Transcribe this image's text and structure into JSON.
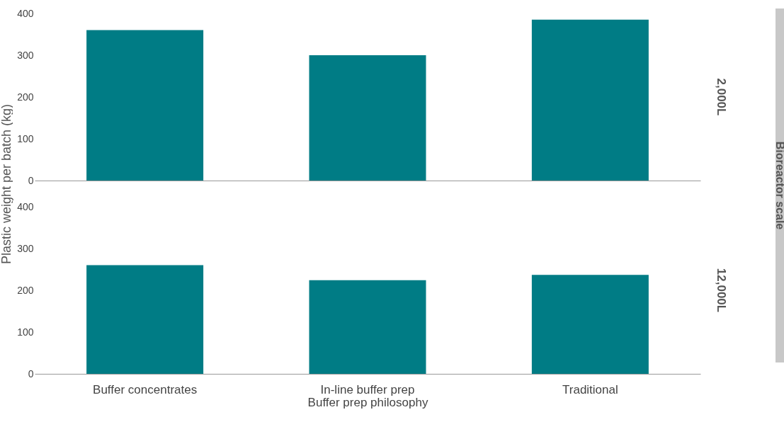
{
  "chart_data": [
    {
      "type": "bar",
      "y2label": "2,000L",
      "ylabel": "Plastic weight per batch (kg)",
      "categories": [
        null,
        null,
        null
      ],
      "values": [
        360,
        300,
        385
      ],
      "color": "#007c85",
      "ylim": [
        0,
        400
      ],
      "yticks": [
        0,
        100,
        200,
        300,
        400
      ],
      "grid": false,
      "tick_labels": "y",
      "annotations": [
        "Bioreactor scale"
      ]
    },
    {
      "type": "bar",
      "y2label": "12,000L",
      "xlabel": "Buffer prep philosophy",
      "categories": [
        "Buffer concentrates",
        "In-line buffer prep",
        "Traditional"
      ],
      "values": [
        260,
        224,
        237
      ],
      "color": "#007c85",
      "ylim": [
        0,
        400
      ],
      "yticks": [
        0,
        100,
        200,
        300,
        400
      ],
      "grid": false
    }
  ]
}
